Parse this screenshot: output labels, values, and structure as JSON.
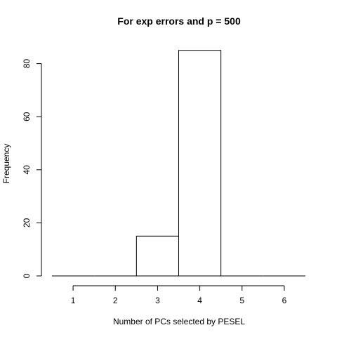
{
  "chart_data": {
    "type": "bar",
    "title": "For exp errors and p = 500",
    "xlabel": "Number of PCs selected by PESEL",
    "ylabel": "Frequency",
    "bins": [
      {
        "start": 0.5,
        "end": 1.5,
        "value": 0
      },
      {
        "start": 1.5,
        "end": 2.5,
        "value": 0
      },
      {
        "start": 2.5,
        "end": 3.5,
        "value": 15
      },
      {
        "start": 3.5,
        "end": 4.5,
        "value": 85
      },
      {
        "start": 4.5,
        "end": 5.5,
        "value": 0
      },
      {
        "start": 5.5,
        "end": 6.5,
        "value": 0
      }
    ],
    "xlim": [
      0.5,
      6.5
    ],
    "ylim": [
      0,
      85
    ],
    "x_ticks": [
      1,
      2,
      3,
      4,
      5,
      6
    ],
    "y_ticks": [
      0,
      20,
      40,
      60,
      80
    ],
    "grid": false,
    "legend": "none"
  }
}
